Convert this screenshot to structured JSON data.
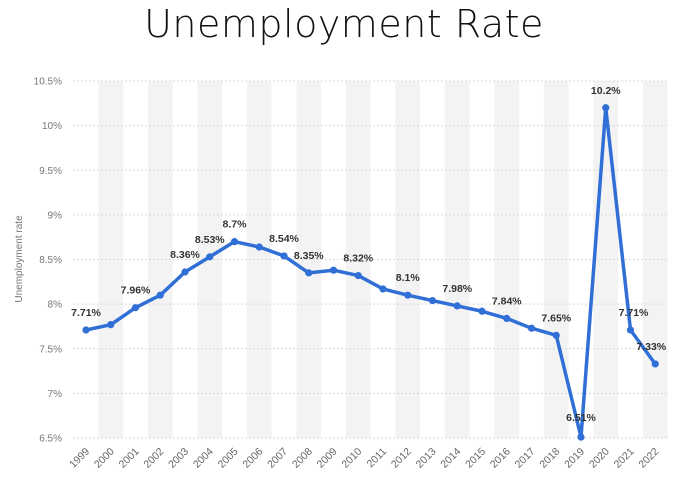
{
  "chart_data": {
    "type": "line",
    "title": "Unemployment Rate",
    "xlabel": "",
    "ylabel": "Unemployment rate",
    "x": [
      "1999",
      "2000",
      "2001",
      "2002",
      "2003",
      "2004",
      "2005",
      "2006",
      "2007",
      "2008",
      "2009",
      "2010",
      "2011",
      "2012",
      "2013",
      "2014",
      "2015",
      "2016",
      "2017",
      "2018",
      "2019",
      "2020",
      "2021",
      "2022"
    ],
    "series": [
      {
        "values": [
          7.71,
          7.77,
          7.96,
          8.1,
          8.36,
          8.53,
          8.7,
          8.64,
          8.54,
          8.35,
          8.38,
          8.32,
          8.17,
          8.1,
          8.04,
          7.98,
          7.92,
          7.84,
          7.73,
          7.65,
          6.51,
          10.2,
          7.71,
          7.33
        ]
      }
    ],
    "data_labels": [
      {
        "index": 0,
        "text": "7.71%"
      },
      {
        "index": 2,
        "text": "7.96%"
      },
      {
        "index": 4,
        "text": "8.36%"
      },
      {
        "index": 5,
        "text": "8.53%"
      },
      {
        "index": 6,
        "text": "8.7%"
      },
      {
        "index": 8,
        "text": "8.54%"
      },
      {
        "index": 9,
        "text": "8.35%"
      },
      {
        "index": 11,
        "text": "8.32%"
      },
      {
        "index": 13,
        "text": "8.1%"
      },
      {
        "index": 15,
        "text": "7.98%"
      },
      {
        "index": 17,
        "text": "7.84%"
      },
      {
        "index": 19,
        "text": "7.65%"
      },
      {
        "index": 20,
        "text": "6.51%"
      },
      {
        "index": 21,
        "text": "10.2%"
      },
      {
        "index": 22,
        "text": "7.71%"
      },
      {
        "index": 23,
        "text": "7.33%"
      }
    ],
    "y_ticks": [
      6.5,
      7,
      7.5,
      8,
      8.5,
      9,
      9.5,
      10,
      10.5
    ],
    "y_tick_labels": [
      "6.5%",
      "7%",
      "7.5%",
      "8%",
      "8.5%",
      "9%",
      "9.5%",
      "10%",
      "10.5%"
    ],
    "ylim": [
      6.5,
      10.5
    ],
    "grid": true,
    "alternating_column_bands": true,
    "colors": {
      "line": "#2f6fd6",
      "marker": "#2f6fd6",
      "band": "#f3f3f3",
      "grid": "#d9d9d9"
    }
  }
}
